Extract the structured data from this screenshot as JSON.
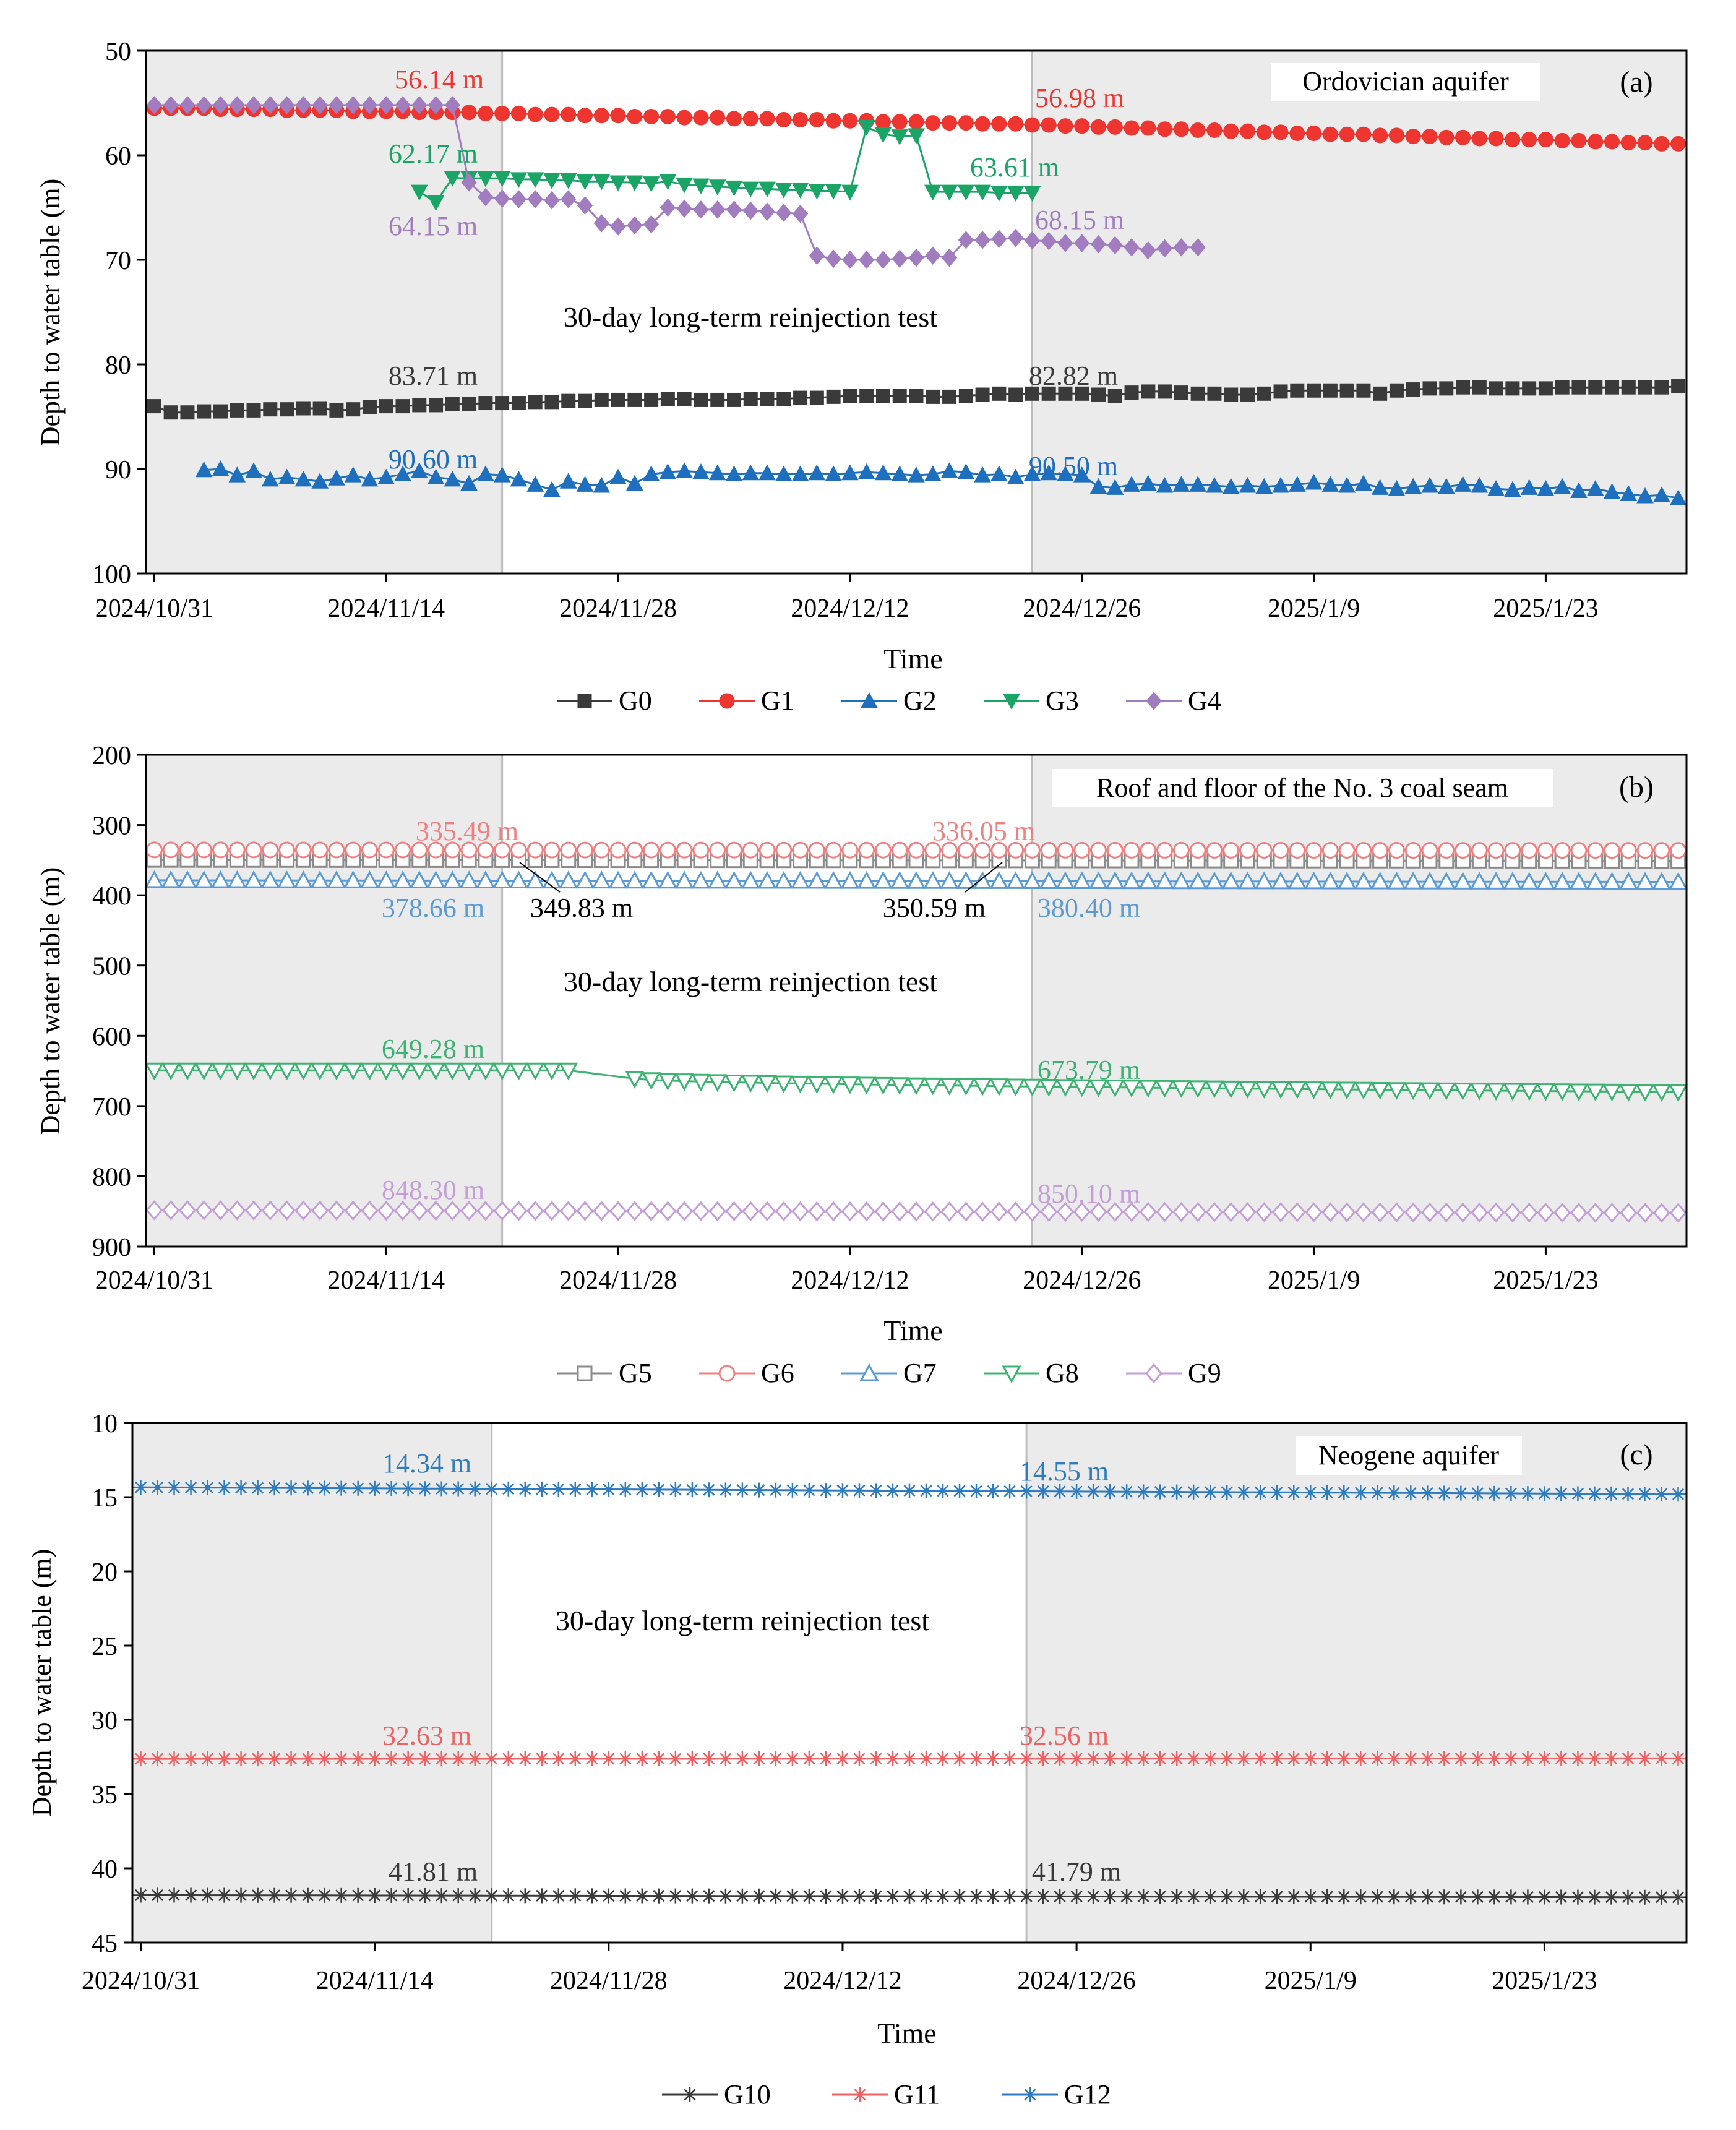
{
  "figure": {
    "test_period": {
      "start_day": 21,
      "end_day": 53
    },
    "tick_labels": [
      "2024/10/31",
      "2024/11/14",
      "2024/11/28",
      "2024/12/12",
      "2024/12/26",
      "2025/1/9",
      "2025/1/23"
    ]
  },
  "chart_data": [
    {
      "type": "line",
      "panel": "(a)",
      "title": "Ordovician aquifer",
      "xlabel": "Time",
      "ylabel": "Depth to water table (m)",
      "ylim": [
        50,
        100
      ],
      "yticks": [
        50,
        60,
        70,
        80,
        90,
        100
      ],
      "y_inverted": true,
      "x_domain_days": [
        -0.5,
        92.5
      ],
      "x_unit": "days since 2024/10/31",
      "background_note": "30-day long-term reinjection test",
      "legend_position": "bottom-center",
      "series": [
        {
          "name": "G0",
          "color": "#3a3a3a",
          "marker": "square-filled",
          "x": [
            0,
            1,
            2,
            3,
            4,
            5,
            6,
            7,
            8,
            9,
            10,
            11,
            12,
            13,
            14,
            15,
            16,
            17,
            18,
            19,
            20,
            21,
            22,
            23,
            24,
            25,
            26,
            27,
            28,
            29,
            30,
            31,
            32,
            33,
            34,
            35,
            36,
            37,
            38,
            39,
            40,
            41,
            42,
            43,
            44,
            45,
            46,
            47,
            48,
            49,
            50,
            51,
            52,
            53,
            54,
            55,
            56,
            57,
            58,
            59,
            60,
            61,
            62,
            63,
            64,
            65,
            66,
            67,
            68,
            69,
            70,
            71,
            72,
            73,
            74,
            75,
            76,
            77,
            78,
            79,
            80,
            81,
            82,
            83,
            84,
            85,
            86,
            87,
            88,
            89,
            90,
            91,
            92
          ],
          "y": [
            84.0,
            84.6,
            84.6,
            84.5,
            84.5,
            84.4,
            84.4,
            84.3,
            84.3,
            84.2,
            84.2,
            84.4,
            84.3,
            84.1,
            84.0,
            84.0,
            83.9,
            83.9,
            83.8,
            83.8,
            83.7,
            83.7,
            83.7,
            83.6,
            83.6,
            83.5,
            83.5,
            83.4,
            83.4,
            83.4,
            83.4,
            83.3,
            83.3,
            83.4,
            83.4,
            83.4,
            83.3,
            83.3,
            83.3,
            83.2,
            83.2,
            83.1,
            83.0,
            83.0,
            83.0,
            83.0,
            83.0,
            83.1,
            83.1,
            83.0,
            82.9,
            82.8,
            82.9,
            82.8,
            82.8,
            82.8,
            82.8,
            82.9,
            83.0,
            82.7,
            82.6,
            82.6,
            82.7,
            82.8,
            82.8,
            82.9,
            82.9,
            82.8,
            82.6,
            82.5,
            82.5,
            82.5,
            82.5,
            82.5,
            82.8,
            82.5,
            82.4,
            82.3,
            82.3,
            82.2,
            82.2,
            82.3,
            82.3,
            82.3,
            82.3,
            82.2,
            82.2,
            82.2,
            82.2,
            82.2,
            82.2,
            82.2,
            82.1
          ]
        },
        {
          "name": "G1",
          "color": "#ee3530",
          "marker": "circle-filled",
          "x": [
            0,
            1,
            2,
            3,
            4,
            5,
            6,
            7,
            8,
            9,
            10,
            11,
            12,
            13,
            14,
            15,
            16,
            17,
            18,
            19,
            20,
            21,
            22,
            23,
            24,
            25,
            26,
            27,
            28,
            29,
            30,
            31,
            32,
            33,
            34,
            35,
            36,
            37,
            38,
            39,
            40,
            41,
            42,
            43,
            44,
            45,
            46,
            47,
            48,
            49,
            50,
            51,
            52,
            53,
            54,
            55,
            56,
            57,
            58,
            59,
            60,
            61,
            62,
            63,
            64,
            65,
            66,
            67,
            68,
            69,
            70,
            71,
            72,
            73,
            74,
            75,
            76,
            77,
            78,
            79,
            80,
            81,
            82,
            83,
            84,
            85,
            86,
            87,
            88,
            89,
            90,
            91,
            92
          ],
          "y": [
            55.5,
            55.5,
            55.5,
            55.5,
            55.6,
            55.6,
            55.6,
            55.6,
            55.7,
            55.7,
            55.7,
            55.7,
            55.8,
            55.8,
            55.8,
            55.8,
            55.9,
            55.9,
            55.9,
            55.9,
            56.0,
            56.0,
            56.0,
            56.1,
            56.1,
            56.1,
            56.2,
            56.2,
            56.2,
            56.3,
            56.3,
            56.3,
            56.4,
            56.4,
            56.4,
            56.5,
            56.5,
            56.5,
            56.6,
            56.6,
            56.6,
            56.7,
            56.7,
            56.7,
            56.8,
            56.8,
            56.8,
            56.9,
            56.9,
            56.9,
            57.0,
            57.0,
            57.0,
            57.1,
            57.1,
            57.2,
            57.2,
            57.3,
            57.3,
            57.4,
            57.4,
            57.5,
            57.5,
            57.6,
            57.6,
            57.7,
            57.7,
            57.8,
            57.8,
            57.9,
            57.9,
            58.0,
            58.0,
            58.0,
            58.1,
            58.1,
            58.2,
            58.2,
            58.3,
            58.3,
            58.4,
            58.4,
            58.5,
            58.5,
            58.5,
            58.6,
            58.6,
            58.7,
            58.7,
            58.8,
            58.8,
            58.9,
            58.9
          ]
        },
        {
          "name": "G2",
          "color": "#1f6fbf",
          "marker": "triangle-up-filled",
          "x": [
            3,
            4,
            5,
            6,
            7,
            8,
            9,
            10,
            11,
            12,
            13,
            14,
            15,
            16,
            17,
            18,
            19,
            20,
            21,
            22,
            23,
            24,
            25,
            26,
            27,
            28,
            29,
            30,
            31,
            32,
            33,
            34,
            35,
            36,
            37,
            38,
            39,
            40,
            41,
            42,
            43,
            44,
            45,
            46,
            47,
            48,
            49,
            50,
            51,
            52,
            53,
            54,
            55,
            56,
            57,
            58,
            59,
            60,
            61,
            62,
            63,
            64,
            65,
            66,
            67,
            68,
            69,
            70,
            71,
            72,
            73,
            74,
            75,
            76,
            77,
            78,
            79,
            80,
            81,
            82,
            83,
            84,
            85,
            86,
            87,
            88,
            89,
            90,
            91,
            92
          ],
          "y": [
            90.1,
            90.0,
            90.6,
            90.2,
            91.0,
            90.8,
            91.0,
            91.2,
            90.9,
            90.6,
            91.0,
            90.8,
            90.5,
            90.2,
            90.8,
            91.0,
            91.4,
            90.5,
            90.6,
            91.0,
            91.5,
            92.0,
            91.2,
            91.5,
            91.6,
            90.8,
            91.4,
            90.5,
            90.3,
            90.2,
            90.3,
            90.4,
            90.5,
            90.4,
            90.4,
            90.5,
            90.5,
            90.4,
            90.5,
            90.4,
            90.3,
            90.4,
            90.5,
            90.6,
            90.5,
            90.2,
            90.3,
            90.6,
            90.5,
            90.8,
            90.5,
            90.4,
            90.5,
            90.6,
            91.7,
            91.8,
            91.5,
            91.4,
            91.6,
            91.5,
            91.5,
            91.6,
            91.7,
            91.6,
            91.7,
            91.6,
            91.5,
            91.3,
            91.5,
            91.6,
            91.4,
            91.8,
            91.9,
            91.7,
            91.6,
            91.7,
            91.5,
            91.6,
            91.9,
            92.0,
            91.8,
            91.9,
            91.7,
            92.1,
            91.9,
            92.2,
            92.4,
            92.6,
            92.5,
            92.8
          ]
        },
        {
          "name": "G3",
          "color": "#1aa566",
          "marker": "triangle-down-filled",
          "x": [
            16,
            17,
            18,
            19,
            20,
            21,
            22,
            23,
            24,
            25,
            26,
            27,
            28,
            29,
            30,
            31,
            32,
            33,
            34,
            35,
            36,
            37,
            38,
            39,
            40,
            41,
            42,
            43,
            44,
            45,
            46,
            47,
            48,
            49,
            50,
            51,
            52,
            53
          ],
          "y": [
            63.5,
            64.5,
            62.17,
            62.2,
            62.2,
            62.2,
            62.3,
            62.3,
            62.4,
            62.4,
            62.5,
            62.5,
            62.6,
            62.6,
            62.7,
            62.5,
            62.8,
            62.9,
            63.0,
            63.1,
            63.2,
            63.2,
            63.3,
            63.3,
            63.4,
            63.4,
            63.5,
            57.3,
            58.0,
            58.2,
            58.1,
            63.5,
            63.5,
            63.5,
            63.5,
            63.6,
            63.6,
            63.61
          ]
        },
        {
          "name": "G4",
          "color": "#a17dbf",
          "marker": "diamond-filled",
          "x": [
            0,
            1,
            2,
            3,
            4,
            5,
            6,
            7,
            8,
            9,
            10,
            11,
            12,
            13,
            14,
            15,
            16,
            17,
            18,
            19,
            20,
            21,
            22,
            23,
            24,
            25,
            26,
            27,
            28,
            29,
            30,
            31,
            32,
            33,
            34,
            35,
            36,
            37,
            38,
            39,
            40,
            41,
            42,
            43,
            44,
            45,
            46,
            47,
            48,
            49,
            50,
            51,
            52,
            53,
            54,
            55,
            56,
            57,
            58,
            59,
            60,
            61,
            62,
            63
          ],
          "y": [
            55.2,
            55.2,
            55.2,
            55.2,
            55.2,
            55.2,
            55.2,
            55.2,
            55.2,
            55.2,
            55.2,
            55.2,
            55.2,
            55.2,
            55.2,
            55.2,
            55.2,
            55.2,
            55.2,
            62.6,
            64.0,
            64.15,
            64.2,
            64.2,
            64.3,
            64.2,
            64.8,
            66.5,
            66.8,
            66.7,
            66.6,
            65.0,
            65.1,
            65.2,
            65.2,
            65.2,
            65.3,
            65.4,
            65.5,
            65.6,
            69.6,
            69.9,
            70.0,
            70.0,
            70.0,
            69.9,
            69.8,
            69.6,
            69.8,
            68.1,
            68.1,
            68.0,
            67.9,
            68.15,
            68.2,
            68.4,
            68.4,
            68.5,
            68.6,
            68.8,
            69.1,
            68.9,
            68.8,
            68.8
          ]
        }
      ],
      "annotations": [
        {
          "text": "56.14 m",
          "series": "G1"
        },
        {
          "text": "56.98 m",
          "series": "G1"
        },
        {
          "text": "62.17 m",
          "series": "G3"
        },
        {
          "text": "63.61 m",
          "series": "G3"
        },
        {
          "text": "64.15 m",
          "series": "G4"
        },
        {
          "text": "68.15 m",
          "series": "G4"
        },
        {
          "text": "83.71 m",
          "series": "G0"
        },
        {
          "text": "82.82 m",
          "series": "G0"
        },
        {
          "text": "90.60 m",
          "series": "G2"
        },
        {
          "text": "90.50 m",
          "series": "G2"
        }
      ]
    },
    {
      "type": "line",
      "panel": "(b)",
      "title": "Roof and floor of  the No. 3 coal seam",
      "xlabel": "Time",
      "ylabel": "Depth to water table (m)",
      "ylim": [
        200,
        900
      ],
      "yticks": [
        200,
        300,
        400,
        500,
        600,
        700,
        800,
        900
      ],
      "y_inverted": true,
      "x_domain_days": [
        -0.5,
        92.5
      ],
      "x_unit": "days since 2024/10/31",
      "background_note": "30-day long-term reinjection test",
      "legend_position": "bottom-center",
      "series": [
        {
          "name": "G5",
          "color": "#8a8a8a",
          "marker": "square-open",
          "start": 0,
          "end": 92,
          "y0": 349.83,
          "y1": 351.0,
          "gap": []
        },
        {
          "name": "G6",
          "color": "#f08080",
          "marker": "circle-open",
          "start": 0,
          "end": 92,
          "y0": 335.49,
          "y1": 336.2,
          "gap": []
        },
        {
          "name": "G7",
          "color": "#5b9bd5",
          "marker": "triangle-up-open",
          "start": 0,
          "end": 92,
          "y0": 378.66,
          "y1": 381.0,
          "gap": []
        },
        {
          "name": "G8",
          "color": "#3cb371",
          "marker": "triangle-down-open",
          "start": 0,
          "end": 92,
          "y0": 649.28,
          "y1": 680.0,
          "gap": [
            25,
            29
          ]
        },
        {
          "name": "G9",
          "color": "#c49ed8",
          "marker": "diamond-open",
          "start": 0,
          "end": 92,
          "y0": 848.3,
          "y1": 852.0,
          "gap": []
        }
      ],
      "annotations": [
        {
          "text": "335.49 m",
          "series": "G6"
        },
        {
          "text": "336.05 m",
          "series": "G6"
        },
        {
          "text": "349.83 m",
          "series": "G5"
        },
        {
          "text": "350.59 m",
          "series": "G5"
        },
        {
          "text": "378.66 m",
          "series": "G7"
        },
        {
          "text": "380.40 m",
          "series": "G7"
        },
        {
          "text": "649.28 m",
          "series": "G8"
        },
        {
          "text": "673.79 m",
          "series": "G8"
        },
        {
          "text": "848.30 m",
          "series": "G9"
        },
        {
          "text": "850.10 m",
          "series": "G9"
        }
      ]
    },
    {
      "type": "line",
      "panel": "(c)",
      "title": "Neogene aquifer",
      "xlabel": "Time",
      "ylabel": "Depth to water table (m)",
      "ylim": [
        10,
        45
      ],
      "yticks": [
        10,
        15,
        20,
        25,
        30,
        35,
        40,
        45
      ],
      "y_inverted": true,
      "x_domain_days": [
        -0.5,
        92.5
      ],
      "x_unit": "days since 2024/10/31",
      "background_note": "30-day long-term reinjection test",
      "legend_position": "bottom-center",
      "series": [
        {
          "name": "G10",
          "color": "#3a3a3a",
          "marker": "star",
          "start": 0,
          "end": 92,
          "y0": 41.81,
          "y1": 41.95
        },
        {
          "name": "G11",
          "color": "#f06060",
          "marker": "star",
          "start": 0,
          "end": 92,
          "y0": 32.63,
          "y1": 32.6
        },
        {
          "name": "G12",
          "color": "#2e7bbf",
          "marker": "star",
          "start": 0,
          "end": 92,
          "y0": 14.34,
          "y1": 14.8
        }
      ],
      "annotations": [
        {
          "text": "14.34 m",
          "series": "G12"
        },
        {
          "text": "14.55 m",
          "series": "G12"
        },
        {
          "text": "32.63 m",
          "series": "G11"
        },
        {
          "text": "32.56 m",
          "series": "G11"
        },
        {
          "text": "41.81 m",
          "series": "G10"
        },
        {
          "text": "41.79 m",
          "series": "G10"
        }
      ]
    }
  ]
}
